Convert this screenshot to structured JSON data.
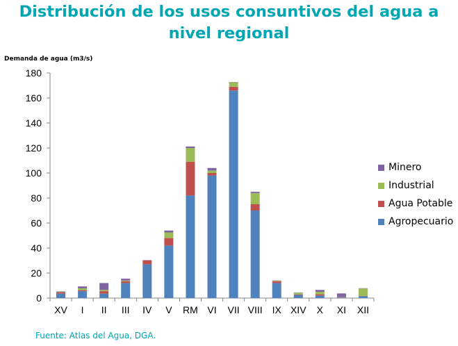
{
  "title_line1": "Distribución de los usos consuntivos del agua a",
  "title_line2": "nivel regional",
  "source": "Fuente: Atlas del Agua, DGA.",
  "chart_data": {
    "type": "bar",
    "stacked": true,
    "ylabel": "Demanda de agua (m3/s)",
    "ylim": [
      0,
      180
    ],
    "yticks": [
      0,
      20,
      40,
      60,
      80,
      100,
      120,
      140,
      160,
      180
    ],
    "categories": [
      "XV",
      "I",
      "II",
      "III",
      "IV",
      "V",
      "RM",
      "VI",
      "VII",
      "VIII",
      "IX",
      "XIV",
      "X",
      "XI",
      "XII"
    ],
    "series": [
      {
        "name": "Agropecuario",
        "color": "#4f81bd",
        "values": [
          3.5,
          5.5,
          3.5,
          12,
          27,
          42,
          82,
          98,
          166,
          70,
          12,
          2.5,
          2,
          0.3,
          1.5
        ]
      },
      {
        "name": "Agua Potable",
        "color": "#c0504d",
        "values": [
          1.2,
          0.8,
          2,
          1.5,
          3,
          6,
          27,
          2,
          3,
          5,
          1.5,
          0.3,
          1,
          0.2,
          0.2
        ]
      },
      {
        "name": "Industrial",
        "color": "#9bbb59",
        "values": [
          0.3,
          1.5,
          1,
          0.5,
          0,
          4.5,
          11,
          2,
          3.5,
          9,
          0.3,
          1.5,
          2,
          0.2,
          6
        ]
      },
      {
        "name": "Minero",
        "color": "#8064a2",
        "values": [
          0.3,
          1.5,
          5.5,
          1.5,
          0.3,
          1.5,
          1.2,
          2,
          0.2,
          1,
          0.3,
          0.2,
          1.5,
          3,
          0.2
        ]
      }
    ],
    "legend_position": "right",
    "legend_order": [
      "Minero",
      "Industrial",
      "Agua Potable",
      "Agropecuario"
    ],
    "grid": false
  }
}
